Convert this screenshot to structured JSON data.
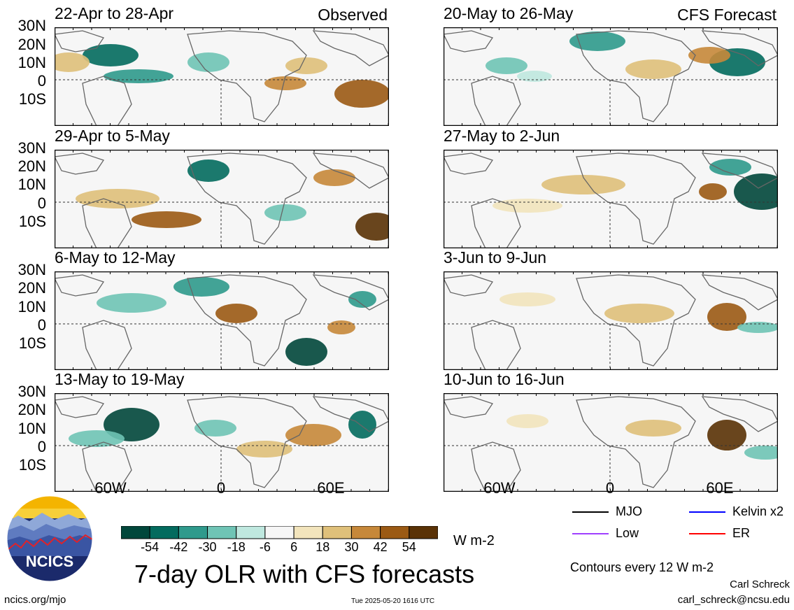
{
  "panels": [
    {
      "title": "22-Apr to 28-Apr",
      "tag": "Observed"
    },
    {
      "title": "20-May to 26-May",
      "tag": "CFS Forecast"
    },
    {
      "title": "29-Apr to 5-May",
      "tag": ""
    },
    {
      "title": "27-May to 2-Jun",
      "tag": ""
    },
    {
      "title": "6-May to 12-May",
      "tag": ""
    },
    {
      "title": "3-Jun to 9-Jun",
      "tag": ""
    },
    {
      "title": "13-May to 19-May",
      "tag": ""
    },
    {
      "title": "10-Jun to 16-Jun",
      "tag": ""
    }
  ],
  "lat_labels": [
    "30N",
    "20N",
    "10N",
    "0",
    "10S"
  ],
  "lon_labels": [
    "60W",
    "0",
    "60E"
  ],
  "colorbar": {
    "ticks": [
      "-54",
      "-42",
      "-30",
      "-18",
      "-6",
      "6",
      "18",
      "30",
      "42",
      "54"
    ],
    "colors": [
      "#01473b",
      "#036b5e",
      "#2f9a8c",
      "#6fc4b5",
      "#bfe8df",
      "#f6f6f6",
      "#f2e4bc",
      "#dfc07a",
      "#c6883a",
      "#9b5a14",
      "#5a3206"
    ],
    "units": "W m-2"
  },
  "title": "7-day OLR with CFS forecasts",
  "legend": [
    {
      "label": "MJO",
      "color": "#000000"
    },
    {
      "label": "Kelvin x2",
      "color": "#0000ff"
    },
    {
      "label": "Low",
      "color": "#a040ff"
    },
    {
      "label": "ER",
      "color": "#ff0000"
    }
  ],
  "contour_note": "Contours every 12 W m-2",
  "author": "Carl Schreck",
  "email": "carl_schreck@ncsu.edu",
  "url": "ncics.org/mjo",
  "timestamp": "Tue 2025-05-20 1616 UTC",
  "logo_text": "NCICS"
}
